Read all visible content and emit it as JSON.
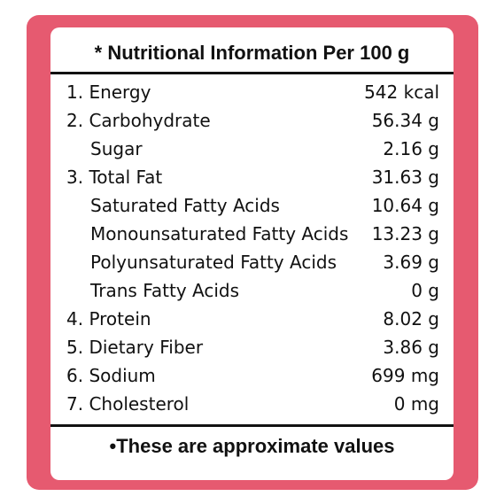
{
  "title": "* Nutritional Information Per 100 g",
  "rows": [
    {
      "name": "1. Energy",
      "value": "542 kcal",
      "sub": false
    },
    {
      "name": "2. Carbohydrate",
      "value": "56.34 g",
      "sub": false
    },
    {
      "name": "Sugar",
      "value": "2.16 g",
      "sub": true
    },
    {
      "name": "3. Total Fat",
      "value": "31.63 g",
      "sub": false
    },
    {
      "name": "Saturated Fatty Acids",
      "value": "10.64 g",
      "sub": true
    },
    {
      "name": "Monounsaturated Fatty Acids",
      "value": "13.23 g",
      "sub": true
    },
    {
      "name": "Polyunsaturated Fatty Acids",
      "value": "3.69 g",
      "sub": true
    },
    {
      "name": "Trans Fatty Acids",
      "value": "0 g",
      "sub": true
    },
    {
      "name": "4. Protein",
      "value": "8.02 g",
      "sub": false
    },
    {
      "name": "5. Dietary Fiber",
      "value": "3.86 g",
      "sub": false
    },
    {
      "name": "6. Sodium",
      "value": "699 mg",
      "sub": false
    },
    {
      "name": "7. Cholesterol",
      "value": "0 mg",
      "sub": false
    }
  ],
  "footer": "•These are approximate values",
  "colors": {
    "frame": "#e65a70",
    "panel": "#ffffff",
    "text": "#111111"
  }
}
